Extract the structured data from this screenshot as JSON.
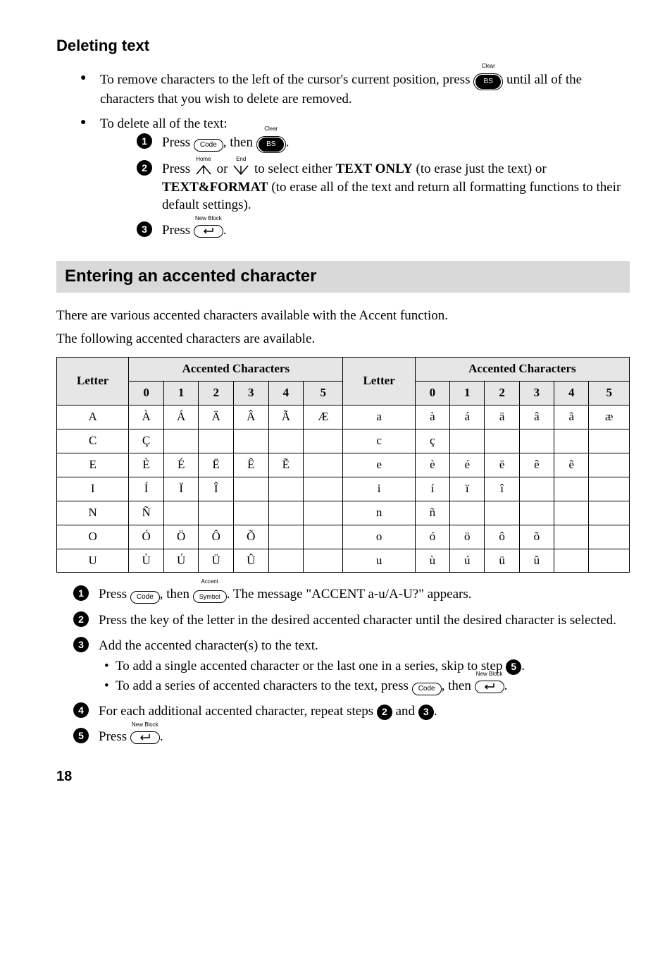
{
  "page_number": "18",
  "section1": {
    "title": "Deleting text",
    "bullet1_a": "To remove characters to the left of the cursor's current position, press ",
    "bullet1_b": " until all of the characters that you wish to delete are removed.",
    "bullet2": "To delete all of the text:",
    "step1_a": "Press ",
    "step1_b": ", then ",
    "step1_c": ".",
    "step2_a": "Press ",
    "step2_b": " or ",
    "step2_c": " to select either ",
    "step2_textonly": "TEXT ONLY",
    "step2_d": " (to erase just the text) or ",
    "step2_textformat": "TEXT&FORMAT",
    "step2_e": " (to erase all of the text and return all formatting functions to their default settings).",
    "step3_a": "Press ",
    "step3_b": "."
  },
  "section2": {
    "title": "Entering an accented character",
    "intro1": "There are various accented characters available with the Accent function.",
    "intro2": "The following accented characters are available.",
    "table": {
      "header_letter": "Letter",
      "header_acc": "Accented Characters",
      "cols": [
        "0",
        "1",
        "2",
        "3",
        "4",
        "5"
      ],
      "rows": [
        {
          "L": "A",
          "c": [
            "À",
            "Á",
            "Ä",
            "Â",
            "Ã",
            "Æ"
          ],
          "l2": "a",
          "c2": [
            "à",
            "á",
            "ä",
            "â",
            "ã",
            "æ"
          ]
        },
        {
          "L": "C",
          "c": [
            "Ç",
            "",
            "",
            "",
            "",
            ""
          ],
          "l2": "c",
          "c2": [
            "ç",
            "",
            "",
            "",
            "",
            ""
          ]
        },
        {
          "L": "E",
          "c": [
            "È",
            "É",
            "Ë",
            "Ê",
            "Ẽ",
            ""
          ],
          "l2": "e",
          "c2": [
            "è",
            "é",
            "ë",
            "ê",
            "ẽ",
            ""
          ]
        },
        {
          "L": "I",
          "c": [
            "Í",
            "Ï",
            "Î",
            "",
            "",
            ""
          ],
          "l2": "i",
          "c2": [
            "í",
            "ï",
            "î",
            "",
            "",
            ""
          ]
        },
        {
          "L": "N",
          "c": [
            "Ñ",
            "",
            "",
            "",
            "",
            ""
          ],
          "l2": "n",
          "c2": [
            "ñ",
            "",
            "",
            "",
            "",
            ""
          ]
        },
        {
          "L": "O",
          "c": [
            "Ó",
            "Ö",
            "Ô",
            "Õ",
            "",
            ""
          ],
          "l2": "o",
          "c2": [
            "ó",
            "ö",
            "ô",
            "õ",
            "",
            ""
          ]
        },
        {
          "L": "U",
          "c": [
            "Ù",
            "Ú",
            "Ü",
            "Û",
            "",
            ""
          ],
          "l2": "u",
          "c2": [
            "ù",
            "ú",
            "ü",
            "û",
            "",
            ""
          ]
        }
      ]
    },
    "step1_a": "Press ",
    "step1_b": ", then ",
    "step1_c": ". The message \"ACCENT a-u/A-U?\" appears.",
    "step2": "Press the key of the letter in the desired accented character until the desired character is selected.",
    "step3_a": "Add the accented character(s) to the text.",
    "step3_sub1_a": "To add a single accented character or the last one in a series, skip to step ",
    "step3_sub1_b": ".",
    "step3_sub2_a": "To add a series of accented characters to the text, press ",
    "step3_sub2_b": ", then ",
    "step3_sub2_c": ".",
    "step4_a": "For each additional accented character, repeat steps ",
    "step4_b": " and ",
    "step4_c": ".",
    "step5_a": "Press ",
    "step5_b": "."
  },
  "keys": {
    "bs_over": "Clear",
    "bs_label": "BS",
    "code_label": "Code",
    "up_over": "Home",
    "down_over": "End",
    "enter_over": "New Block",
    "symbol_over": "Accent",
    "symbol_label": "Symbol"
  },
  "stepref": {
    "two": "2",
    "three": "3",
    "five": "5"
  }
}
